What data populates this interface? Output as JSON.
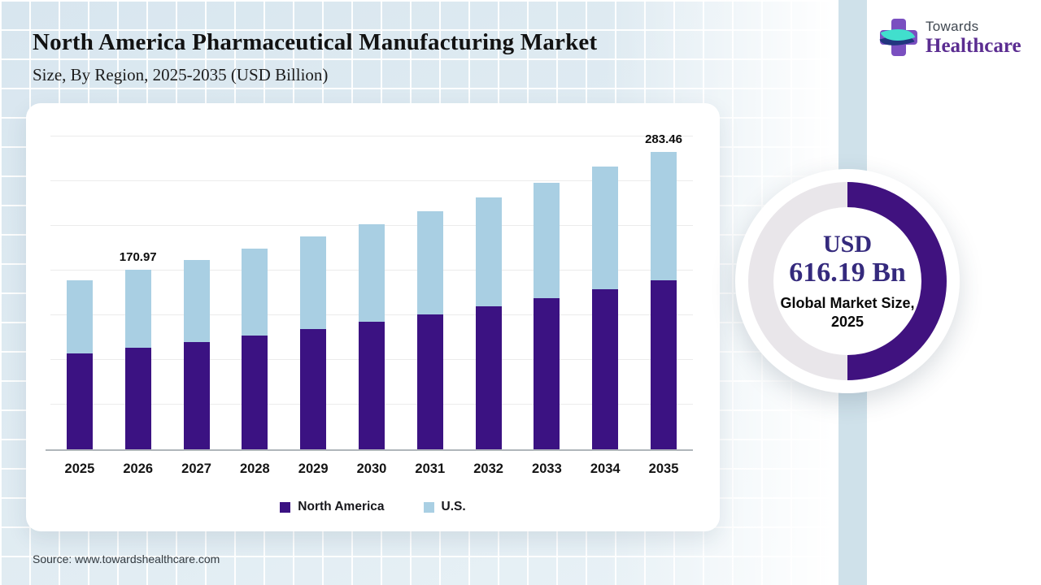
{
  "header": {
    "title": "North America Pharmaceutical Manufacturing Market",
    "subtitle": "Size, By Region, 2025-2035 (USD Billion)"
  },
  "logo": {
    "top": "Towards",
    "bottom": "Healthcare"
  },
  "chart_data": {
    "type": "bar",
    "stacked": true,
    "title": "North America Pharmaceutical Manufacturing Market Size, By Region, 2025-2035 (USD Billion)",
    "xlabel": "Year",
    "ylabel": "USD Billion",
    "y_axis_labels_visible": false,
    "grid": "horizontal",
    "legend_position": "bottom",
    "categories": [
      "2025",
      "2026",
      "2027",
      "2028",
      "2029",
      "2030",
      "2031",
      "2032",
      "2033",
      "2034",
      "2035"
    ],
    "series": [
      {
        "name": "North America",
        "color": "#3b1282",
        "values": [
          91.5,
          96.9,
          102.5,
          108.5,
          114.9,
          121.6,
          128.7,
          136.2,
          144.2,
          152.6,
          161.5
        ]
      },
      {
        "name": "U.S.",
        "color": "#a9cfe3",
        "values": [
          70.0,
          74.07,
          78.5,
          83.1,
          87.9,
          93.1,
          98.5,
          104.3,
          110.4,
          116.9,
          121.96
        ]
      }
    ],
    "totals": [
      161.5,
      170.97,
      181.0,
      191.6,
      202.8,
      214.7,
      227.2,
      240.5,
      254.6,
      269.5,
      283.46
    ],
    "data_labels": [
      {
        "category": "2026",
        "text": "170.97"
      },
      {
        "category": "2035",
        "text": "283.46"
      }
    ]
  },
  "legend": [
    {
      "label": "North America",
      "color": "#3b1282"
    },
    {
      "label": "U.S.",
      "color": "#a9cfe3"
    }
  ],
  "donut": {
    "line1": "USD",
    "line2": "616.19 Bn",
    "caption": "Global Market Size, 2025",
    "fill_percent": 50,
    "arc_color": "#40127f",
    "track_color": "#e9e6ea"
  },
  "source": {
    "text": "Source: www.towardshealthcare.com"
  }
}
